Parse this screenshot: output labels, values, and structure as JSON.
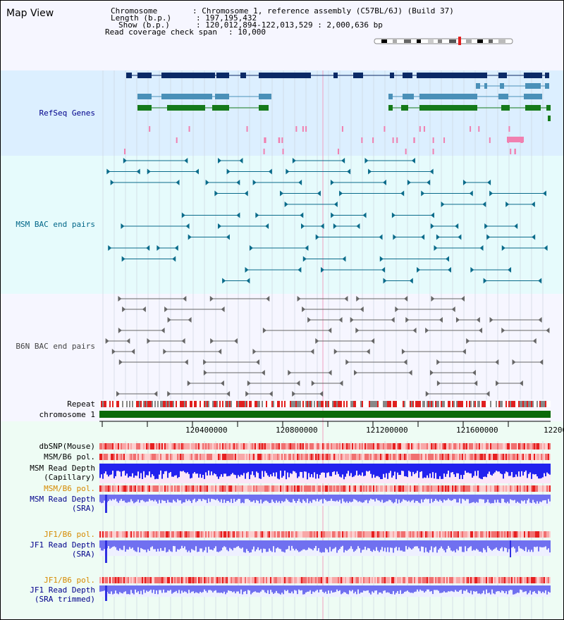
{
  "title": "Map View",
  "info": {
    "chromosome_key": "Chromosome",
    "chromosome_val": "Chromosome 1, reference assembly (C57BL/6J) (Build 37)",
    "length_key": "Length (b.p.)",
    "length_val": "197,195,432",
    "show_key": "Show (b.p.)",
    "show_val": "120,012,894-122,013,529 : 2,000,636 bp",
    "coverage_key": "Read coverage check span",
    "coverage_val": "10,000"
  },
  "tracks": {
    "refseq": "RefSeq Genes",
    "msm_bac": "MSM BAC end pairs",
    "b6n_bac": "B6N BAC end pairs",
    "repeat": "Repeat",
    "chromosome": "chromosome 1",
    "dbsnp": "dbSNP(Mouse)",
    "msm_b6_pol_1": "MSM/B6 pol.",
    "msm_read_depth_cap_1": "MSM Read Depth",
    "msm_read_depth_cap_2": "(Capillary)",
    "msm_b6_pol_2": "MSM/B6 pol.",
    "msm_read_depth_sra_1": "MSM Read Depth",
    "msm_read_depth_sra_2": "(SRA)",
    "jf1_b6_pol_1": "JF1/B6 pol.",
    "jf1_read_depth_sra_1": "JF1 Read Depth",
    "jf1_read_depth_sra_2": "(SRA)",
    "jf1_b6_pol_2": "JF1/B6 pol.",
    "jf1_read_depth_trim_1": "JF1 Read Depth",
    "jf1_read_depth_trim_2": "(SRA trimmed)"
  },
  "ruler": {
    "ticks": [
      "120400000",
      "120800000",
      "121200000",
      "121600000",
      "12200"
    ]
  },
  "colors": {
    "refseq_bg": "#dcefff",
    "msm_bg": "#e6fbfc",
    "b6n_bg": "#f6f6ff",
    "gene_dark": "#0b2a66",
    "gene_light": "#4a90b8",
    "gene_green": "#157a1a",
    "msm_color": "#0a6b8a",
    "b6n_color": "#666666",
    "repeat_red": "#e02020",
    "chromosome_green": "#0a6b0a",
    "depth_blue": "#2222ee",
    "sra_violet": "#7070f0"
  }
}
